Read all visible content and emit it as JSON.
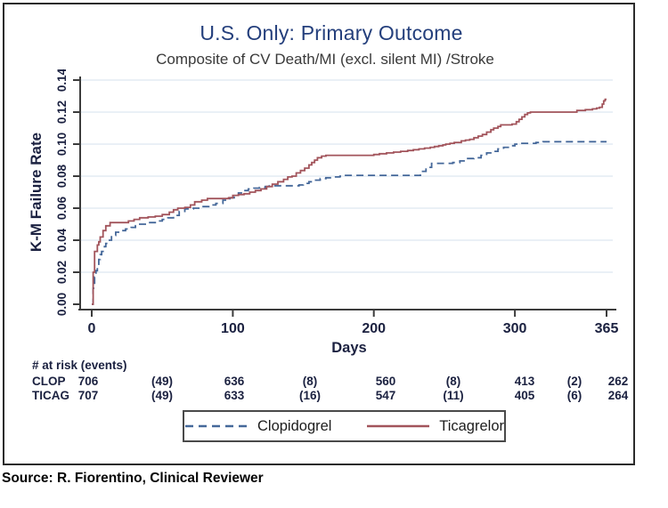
{
  "title": "U.S. Only: Primary Outcome",
  "subtitle": "Composite of CV Death/MI (excl. silent MI) /Stroke",
  "source_line": "Source: R. Fiorentino, Clinical Reviewer",
  "colors": {
    "title": "#243f7c",
    "clopidogrel": "#45689a",
    "ticagrelor": "#a2545b",
    "grid": "#dde8f0",
    "axis": "#3c3c3c",
    "tick_text": "#1b2140"
  },
  "legend": {
    "items": [
      {
        "label": "Clopidogrel",
        "style": "dashed",
        "color_key": "clopidogrel"
      },
      {
        "label": "Ticagrelor",
        "style": "solid",
        "color_key": "ticagrelor"
      }
    ]
  },
  "risk_table": {
    "header": "# at risk (events)",
    "rows": [
      {
        "label": "CLOP",
        "values": [
          "706",
          "(49)",
          "636",
          "(8)",
          "560",
          "(8)",
          "413",
          "(2)",
          "262"
        ]
      },
      {
        "label": "TICAG",
        "values": [
          "707",
          "(49)",
          "633",
          "(16)",
          "547",
          "(11)",
          "405",
          "(6)",
          "264"
        ]
      }
    ]
  },
  "chart_data": {
    "type": "line",
    "step": true,
    "title": "U.S. Only: Primary Outcome",
    "subtitle": "Composite of CV Death/MI (excl. silent MI) /Stroke",
    "xlabel": "Days",
    "ylabel": "K-M Failure Rate",
    "xlim": [
      0,
      365
    ],
    "ylim": [
      0.0,
      0.14
    ],
    "xticks": [
      0,
      100,
      200,
      300,
      365
    ],
    "ytick_labels": [
      "0.00",
      "0.02",
      "0.04",
      "0.06",
      "0.08",
      "0.10",
      "0.12",
      "0.14"
    ],
    "yticks": [
      0.0,
      0.02,
      0.04,
      0.06,
      0.08,
      0.1,
      0.12,
      0.14
    ],
    "grid": "horizontal",
    "legend_position": "bottom",
    "series": [
      {
        "name": "Clopidogrel",
        "color_key": "clopidogrel",
        "dashed": true,
        "points": [
          [
            0,
            0
          ],
          [
            1,
            0.01
          ],
          [
            2,
            0.017
          ],
          [
            3,
            0.021
          ],
          [
            4,
            0.025
          ],
          [
            5,
            0.028
          ],
          [
            6,
            0.031
          ],
          [
            7,
            0.033
          ],
          [
            9,
            0.036
          ],
          [
            10,
            0.038
          ],
          [
            12,
            0.04
          ],
          [
            14,
            0.043
          ],
          [
            17,
            0.045
          ],
          [
            20,
            0.046
          ],
          [
            24,
            0.047
          ],
          [
            28,
            0.048
          ],
          [
            31,
            0.049
          ],
          [
            33,
            0.05
          ],
          [
            40,
            0.051
          ],
          [
            46,
            0.052
          ],
          [
            50,
            0.053
          ],
          [
            54,
            0.054
          ],
          [
            58,
            0.0555
          ],
          [
            62,
            0.058
          ],
          [
            66,
            0.0595
          ],
          [
            72,
            0.06
          ],
          [
            78,
            0.061
          ],
          [
            83,
            0.062
          ],
          [
            88,
            0.063
          ],
          [
            93,
            0.065
          ],
          [
            98,
            0.0665
          ],
          [
            101,
            0.068
          ],
          [
            104,
            0.0695
          ],
          [
            107,
            0.071
          ],
          [
            111,
            0.072
          ],
          [
            115,
            0.0725
          ],
          [
            119,
            0.073
          ],
          [
            123,
            0.0735
          ],
          [
            126,
            0.074
          ],
          [
            147,
            0.0745
          ],
          [
            150,
            0.0755
          ],
          [
            154,
            0.0765
          ],
          [
            158,
            0.0775
          ],
          [
            162,
            0.0785
          ],
          [
            166,
            0.079
          ],
          [
            171,
            0.0795
          ],
          [
            176,
            0.08
          ],
          [
            180,
            0.0805
          ],
          [
            230,
            0.0805
          ],
          [
            233,
            0.083
          ],
          [
            237,
            0.0855
          ],
          [
            241,
            0.088
          ],
          [
            256,
            0.0885
          ],
          [
            261,
            0.0895
          ],
          [
            266,
            0.091
          ],
          [
            271,
            0.0915
          ],
          [
            276,
            0.093
          ],
          [
            280,
            0.0945
          ],
          [
            284,
            0.0955
          ],
          [
            288,
            0.097
          ],
          [
            292,
            0.098
          ],
          [
            296,
            0.099
          ],
          [
            300,
            0.1
          ],
          [
            304,
            0.1005
          ],
          [
            315,
            0.101
          ],
          [
            320,
            0.1015
          ],
          [
            365,
            0.1015
          ]
        ]
      },
      {
        "name": "Ticagrelor",
        "color_key": "ticagrelor",
        "dashed": false,
        "points": [
          [
            0,
            0
          ],
          [
            1,
            0.02
          ],
          [
            2,
            0.033
          ],
          [
            4,
            0.037
          ],
          [
            5,
            0.039
          ],
          [
            6,
            0.042
          ],
          [
            8,
            0.046
          ],
          [
            10,
            0.049
          ],
          [
            13,
            0.051
          ],
          [
            26,
            0.052
          ],
          [
            30,
            0.053
          ],
          [
            34,
            0.054
          ],
          [
            40,
            0.0545
          ],
          [
            45,
            0.055
          ],
          [
            50,
            0.056
          ],
          [
            55,
            0.0575
          ],
          [
            58,
            0.059
          ],
          [
            61,
            0.06
          ],
          [
            66,
            0.0605
          ],
          [
            70,
            0.062
          ],
          [
            73,
            0.064
          ],
          [
            78,
            0.065
          ],
          [
            82,
            0.066
          ],
          [
            97,
            0.0665
          ],
          [
            100,
            0.068
          ],
          [
            104,
            0.0685
          ],
          [
            108,
            0.069
          ],
          [
            112,
            0.07
          ],
          [
            116,
            0.071
          ],
          [
            120,
            0.072
          ],
          [
            124,
            0.0735
          ],
          [
            128,
            0.075
          ],
          [
            132,
            0.0765
          ],
          [
            136,
            0.078
          ],
          [
            139,
            0.0795
          ],
          [
            142,
            0.08
          ],
          [
            145,
            0.082
          ],
          [
            148,
            0.0835
          ],
          [
            151,
            0.085
          ],
          [
            154,
            0.087
          ],
          [
            156,
            0.0885
          ],
          [
            158,
            0.09
          ],
          [
            160,
            0.0915
          ],
          [
            163,
            0.0925
          ],
          [
            166,
            0.093
          ],
          [
            197,
            0.093
          ],
          [
            200,
            0.0935
          ],
          [
            204,
            0.094
          ],
          [
            209,
            0.0945
          ],
          [
            214,
            0.095
          ],
          [
            219,
            0.0955
          ],
          [
            224,
            0.096
          ],
          [
            228,
            0.0965
          ],
          [
            232,
            0.097
          ],
          [
            236,
            0.0975
          ],
          [
            240,
            0.098
          ],
          [
            243,
            0.0985
          ],
          [
            246,
            0.099
          ],
          [
            249,
            0.0995
          ],
          [
            251,
            0.1
          ],
          [
            254,
            0.1005
          ],
          [
            257,
            0.101
          ],
          [
            262,
            0.102
          ],
          [
            265,
            0.1025
          ],
          [
            268,
            0.103
          ],
          [
            271,
            0.104
          ],
          [
            274,
            0.105
          ],
          [
            277,
            0.106
          ],
          [
            280,
            0.1075
          ],
          [
            283,
            0.109
          ],
          [
            285,
            0.11
          ],
          [
            288,
            0.111
          ],
          [
            290,
            0.112
          ],
          [
            298,
            0.1125
          ],
          [
            301,
            0.114
          ],
          [
            303,
            0.1155
          ],
          [
            305,
            0.117
          ],
          [
            307,
            0.1185
          ],
          [
            309,
            0.1195
          ],
          [
            311,
            0.12
          ],
          [
            341,
            0.12
          ],
          [
            344,
            0.121
          ],
          [
            350,
            0.1215
          ],
          [
            355,
            0.122
          ],
          [
            358,
            0.1225
          ],
          [
            360,
            0.123
          ],
          [
            362,
            0.125
          ],
          [
            363,
            0.127
          ],
          [
            364,
            0.128
          ],
          [
            365,
            0.128
          ]
        ]
      }
    ]
  }
}
